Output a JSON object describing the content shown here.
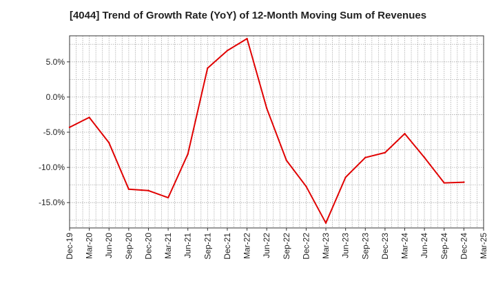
{
  "chart_data": {
    "type": "line",
    "title": "[4044]  Trend of Growth Rate (YoY) of 12-Month Moving Sum of Revenues",
    "xlabel": "",
    "ylabel": "",
    "grid": true,
    "x_tick_labels": [
      "Dec-19",
      "Mar-20",
      "Jun-20",
      "Sep-20",
      "Dec-20",
      "Mar-21",
      "Jun-21",
      "Sep-21",
      "Dec-21",
      "Mar-22",
      "Jun-22",
      "Sep-22",
      "Dec-22",
      "Mar-23",
      "Jun-23",
      "Sep-23",
      "Dec-23",
      "Mar-24",
      "Jun-24",
      "Sep-24",
      "Dec-24",
      "Mar-25"
    ],
    "y_ticks": [
      5,
      0,
      -5,
      -10,
      -15
    ],
    "y_tick_labels": [
      "5.0%",
      "0.0%",
      "-5.0%",
      "-10.0%",
      "-15.0%"
    ],
    "ylim": [
      -18.6,
      8.7
    ],
    "series": [
      {
        "color": "#e00000",
        "x": [
          "Dec-19",
          "Mar-20",
          "Jun-20",
          "Sep-20",
          "Dec-20",
          "Mar-21",
          "Jun-21",
          "Sep-21",
          "Dec-21",
          "Mar-22",
          "Jun-22",
          "Sep-22",
          "Dec-22",
          "Mar-23",
          "Jun-23",
          "Sep-23",
          "Dec-23",
          "Mar-24",
          "Jun-24",
          "Sep-24",
          "Dec-24"
        ],
        "values": [
          -4.3,
          -2.9,
          -6.5,
          -13.1,
          -13.3,
          -14.3,
          -8.1,
          4.1,
          6.6,
          8.3,
          -1.6,
          -9.0,
          -12.7,
          -17.9,
          -11.4,
          -8.6,
          -7.9,
          -5.2,
          -8.6,
          -12.2,
          -12.1
        ]
      }
    ]
  }
}
